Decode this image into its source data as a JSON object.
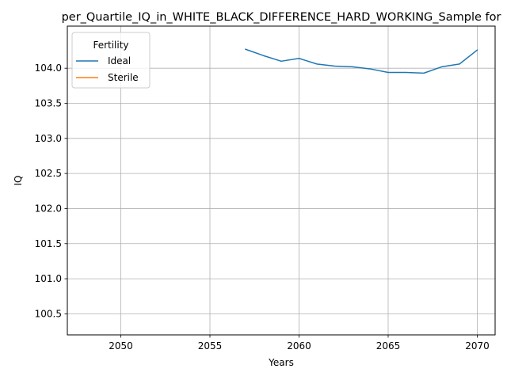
{
  "chart_data": {
    "type": "line",
    "title": "per_Quartile_IQ_in_WHITE_BLACK_DIFFERENCE_HARD_WORKING_Sample for",
    "xlabel": "Years",
    "ylabel": "IQ",
    "xlim": [
      2047,
      2071
    ],
    "ylim": [
      100.2,
      104.6
    ],
    "xticks": [
      2050,
      2055,
      2060,
      2065,
      2070
    ],
    "xtick_labels": [
      "2050",
      "2055",
      "2060",
      "2065",
      "2070"
    ],
    "yticks": [
      100.5,
      101.0,
      101.5,
      102.0,
      102.5,
      103.0,
      103.5,
      104.0
    ],
    "ytick_labels": [
      "100.5",
      "101.0",
      "101.5",
      "102.0",
      "102.5",
      "103.0",
      "103.5",
      "104.0"
    ],
    "grid": true,
    "legend": {
      "title": "Fertility",
      "placement": "upper-left"
    },
    "series": [
      {
        "name": "Ideal",
        "color": "#1f77b4",
        "x": [
          2057,
          2058,
          2059,
          2060,
          2061,
          2062,
          2063,
          2064,
          2065,
          2066,
          2067,
          2068,
          2069,
          2070
        ],
        "y": [
          104.27,
          104.18,
          104.1,
          104.14,
          104.06,
          104.03,
          104.02,
          103.99,
          103.94,
          103.94,
          103.93,
          104.02,
          104.06,
          104.26
        ]
      },
      {
        "name": "Sterile",
        "color": "#ff7f0e",
        "x": [],
        "y": []
      }
    ]
  }
}
